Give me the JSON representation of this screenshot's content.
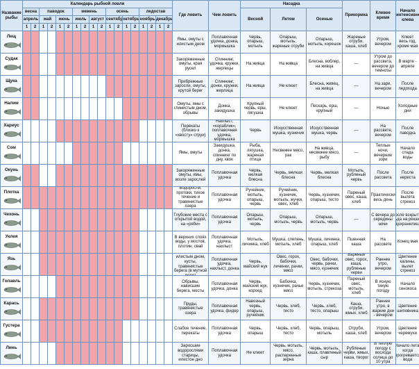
{
  "header": {
    "name": "Название рыбы",
    "calendar": "Календарь рыбной ловли",
    "seasons": [
      {
        "name": "весна",
        "months": [
          {
            "name": "апрель",
            "halves": [
              1,
              2
            ]
          }
        ]
      },
      {
        "name": "паводок",
        "months": [
          {
            "name": "май",
            "halves": [
              1,
              2
            ]
          },
          {
            "name": "июнь",
            "halves": [
              1,
              2
            ]
          }
        ]
      },
      {
        "name": "межень",
        "months": [
          {
            "name": "июль",
            "halves": [
              1,
              2
            ]
          },
          {
            "name": "август",
            "halves": [
              1,
              2
            ]
          }
        ]
      },
      {
        "name": "осень",
        "months": [
          {
            "name": "сентябрь",
            "halves": [
              1,
              2
            ]
          },
          {
            "name": "октябрь",
            "halves": [
              1,
              2
            ]
          }
        ]
      },
      {
        "name": "ледостав",
        "months": [
          {
            "name": "ноябрь",
            "halves": [
              1,
              2
            ]
          },
          {
            "name": "декабрь",
            "halves": [
              1,
              2
            ]
          }
        ]
      }
    ],
    "where": "Где ловить",
    "gear": "Чем ловить",
    "bait": "Насадка",
    "bait_seasons": [
      "Весной",
      "Летом",
      "Осенью"
    ],
    "groundbait": "Прикормка",
    "bite_time": "Клевое время",
    "start": "Начало интенсивного клева"
  },
  "rows": [
    {
      "name": "Лещ",
      "calendar": [
        1,
        1,
        0,
        0,
        1,
        1,
        1,
        1,
        1,
        1,
        1,
        1,
        1,
        1,
        1,
        1,
        1,
        1
      ],
      "where": "Ямы, омуты с илистым дном",
      "gear": "Поплавочная удочка, донка, мормышка",
      "bait": [
        "Червь, опарыш, мотыль",
        "Опарыш, мотыль, жареные отруби",
        "Опарыш, мотыль, корешок"
      ],
      "groundbait": "Жареные отруби, каша, хлеб",
      "bite_time": "Утром, вечером",
      "start": "Клюет весь год, кроме мая"
    },
    {
      "name": "Судак",
      "calendar": [
        1,
        1,
        0,
        0,
        1,
        1,
        1,
        1,
        1,
        1,
        1,
        1,
        1,
        1,
        1,
        1,
        1,
        1
      ],
      "where": "Закоряженные омуты, края русел",
      "gear": "Спиннинг, удочка, кружки, жерлицы",
      "bait": [
        "На живца",
        "На живца",
        "Блесна, воблер, на живца"
      ],
      "groundbait": "—",
      "bite_time": "Утром до рассвета, вечером до темноты",
      "start": "В марте - апреле"
    },
    {
      "name": "Щука",
      "calendar": [
        1,
        1,
        0,
        0,
        0,
        0,
        0,
        0,
        0,
        0,
        1,
        1,
        1,
        1,
        1,
        1,
        1,
        1
      ],
      "where": "Прибрежные заросли, омуты, крутой берег",
      "gear": "Спиннинг, донки, кружки, жерлица",
      "bait": [
        "На живца",
        "Не клюет",
        "Блесна, живец, на живца"
      ],
      "groundbait": "—",
      "bite_time": "На заре, вечером",
      "start": "После ледохода"
    },
    {
      "name": "Налим",
      "calendar": [
        1,
        1,
        0,
        0,
        0,
        0,
        0,
        0,
        0,
        0,
        0,
        0,
        1,
        1,
        1,
        1,
        1,
        1
      ],
      "where": "Омуты, ямы с глинистым дном, обрывы",
      "gear": "Донка, закидушка",
      "bait": [
        "Крупный червь, ерш, лягушка",
        "Не клюет",
        "Пескарь, ерш, крупный"
      ],
      "groundbait": "—",
      "bite_time": "Ночью",
      "start": "Холодные дни"
    },
    {
      "name": "Хариус",
      "calendar": [
        0,
        0,
        0,
        0,
        1,
        1,
        1,
        1,
        1,
        1,
        1,
        1,
        1,
        1,
        0,
        0,
        0,
        0
      ],
      "where": "Перекаты (близко к «хвосту» струи)",
      "gear": "Нахлыст, «кораблик», поплавочная удочка, мормышка",
      "bait": [
        "Червь",
        "Искусственная мушка, кузнечик",
        "Искусственная мушка, червь"
      ],
      "groundbait": "—",
      "bite_time": "На рассвете, вечером",
      "start": "После паводка"
    },
    {
      "name": "Сом",
      "calendar": [
        0,
        0,
        0,
        0,
        0,
        0,
        1,
        1,
        1,
        1,
        1,
        1,
        0,
        0,
        0,
        0,
        0,
        0
      ],
      "where": "Ямы, омуты",
      "gear": "Закидушка, донка, спиннинг по дну, квок",
      "bait": [
        "Рыба, лягушка, жареная птица",
        "Несвежее мясо, рак",
        "На живца, несвежее мясо, рыбу"
      ],
      "groundbait": "—",
      "bite_time": "Теплые ночи, вечерние зори",
      "start": "Начало спада воды"
    },
    {
      "name": "Окунь",
      "calendar": [
        1,
        1,
        0,
        0,
        1,
        1,
        1,
        1,
        1,
        1,
        1,
        1,
        1,
        1,
        1,
        1,
        1,
        1
      ],
      "where": "Закоряженные омуты, ямы, возле зарослей",
      "gear": "Поплавочная удочка",
      "bait": [
        "Червь, мелкая блесна",
        "Червь, мелкая блесна",
        "Червь, мелкая блесна"
      ],
      "groundbait": "Мотыль, рубленый червь",
      "bite_time": "После рассвета",
      "start": "После нереста"
    },
    {
      "name": "Плотка",
      "calendar": [
        1,
        1,
        1,
        1,
        1,
        1,
        1,
        1,
        1,
        1,
        1,
        1,
        1,
        1,
        1,
        1,
        1,
        1
      ],
      "where": "Водоросли, протоки, тихое течение и травянистые озера",
      "gear": "Поплавочная удочка",
      "bait": [
        "Ручейник, мотыль, опарыш, червь",
        "Ручейник, кузнечик, мотыль, жучки, овес, хлеб",
        "Червь, кузнечик, опарыш, тесто"
      ],
      "groundbait": "Пареный овес, каша, хлеб",
      "bite_time": "Практически весь день",
      "start": "После вылета стрекоз"
    },
    {
      "name": "Чехонь",
      "calendar": [
        0,
        0,
        1,
        1,
        1,
        1,
        1,
        1,
        1,
        1,
        1,
        1,
        1,
        1,
        0,
        0,
        0,
        0
      ],
      "where": "Глубокие места с открытой водой, на «ряби»",
      "gear": "Поплавочная удочка",
      "bait": [
        "Опарыш, мотыль, червь",
        "Опарыш, мотыль, червь",
        "Опарыш, мотыль, червь"
      ],
      "groundbait": "—",
      "bite_time": "С вечера до середины ночи",
      "start": "После вскрытия льда на реках и водохранилищах"
    },
    {
      "name": "Уклея",
      "calendar": [
        0,
        0,
        1,
        1,
        1,
        1,
        1,
        1,
        1,
        1,
        1,
        1,
        1,
        1,
        0,
        0,
        0,
        0
      ],
      "where": "В верхних слоях воды, у мостов, плотин, свай",
      "gear": "Поплавочная удочка, нахлыст",
      "bait": [
        "Мотыль, личинка, хлеб",
        "Мушка, слепень, мотыль, хлеб",
        "Мушка, личинка, опарыш, хлеб"
      ],
      "groundbait": "Пшенная каша",
      "bite_time": "На рассвете",
      "start": "Конец мая"
    },
    {
      "name": "Язь",
      "calendar": [
        0,
        0,
        1,
        1,
        1,
        1,
        1,
        1,
        1,
        1,
        1,
        1,
        1,
        1,
        0,
        0,
        0,
        0
      ],
      "where": "Заливы с илистым дном, кусты, травянистые берега (в мутной воде)",
      "gear": "Поплавочная удочка, нахлыст, донка",
      "bait": [
        "Червь, майский жук",
        "Овес, горох, бабочки, личинки, рачки, мясо",
        "Овес, бабочки, червь, рачки, мясо, кузнечик"
      ],
      "groundbait": "Вареный овес, горох, каша, рубленые черви",
      "bite_time": "Раннее утро, вечером",
      "start": "Цветение калины, вылет стрекоз"
    },
    {
      "name": "Голавль",
      "calendar": [
        0,
        0,
        0,
        0,
        1,
        1,
        1,
        1,
        1,
        1,
        1,
        1,
        1,
        1,
        0,
        0,
        0,
        0
      ],
      "where": "Обрывы, нависшие берега, мосты",
      "gear": "Поплавочная удочка, донка",
      "bait": [
        "Червь, майский жук, короед",
        "Бабочка, кузнечик, рачье мясо",
        "Червь, кузнечик, мотыль, стрекоза"
      ],
      "groundbait": "Пареный овес, мотыль, хлеб",
      "bite_time": "В ясную тихую погоду",
      "start": "Начало сенокоса"
    },
    {
      "name": "Карась",
      "calendar": [
        0,
        0,
        1,
        1,
        1,
        1,
        1,
        1,
        1,
        1,
        1,
        1,
        1,
        1,
        0,
        0,
        0,
        0
      ],
      "where": "Пруды, травянистые озера",
      "gear": "Поплавочная удочка, фидер",
      "bait": [
        "Навозный червь, опарыш, ручейник",
        "Червь, хлеб, тесто",
        "Червь, хлеб, тесто, опарыш"
      ],
      "groundbait": "Каша, отруби, жмых, хлеб",
      "bite_time": "Раннее утро, в жаркие дни - вечером",
      "start": "Цветение шиповника"
    },
    {
      "name": "Густера",
      "calendar": [
        0,
        0,
        1,
        1,
        1,
        1,
        1,
        1,
        1,
        1,
        1,
        1,
        0,
        0,
        0,
        0,
        0,
        0
      ],
      "where": "Слабое течение, перекаты",
      "gear": "Поплавочная удочка",
      "bait": [
        "Червь, опарыш",
        "Червь, хлеб, тесто",
        "Червь, опарыш, мотыль"
      ],
      "groundbait": "Отруби, каша, хлеб",
      "bite_time": "Утром, вечером",
      "start": "Цветение черемухи"
    },
    {
      "name": "Линь",
      "calendar": [
        0,
        0,
        0,
        0,
        1,
        1,
        1,
        1,
        1,
        1,
        1,
        1,
        0,
        0,
        0,
        0,
        0,
        0
      ],
      "where": "Заросшие водорослями старицы, илистое дно",
      "gear": "Поплавочная удочка",
      "bait": [
        "Не клюет",
        "Червь, мотыль, мясо, распаренные зерна",
        "Червь, мотыль, каша, плавленый сыр"
      ],
      "groundbait": "Рубленые черви, жмых, каша, творог",
      "bite_time": "В теплую погоду с восхода солнца до 10 утра",
      "start": "Начало лета, когда прогревается вода"
    }
  ]
}
